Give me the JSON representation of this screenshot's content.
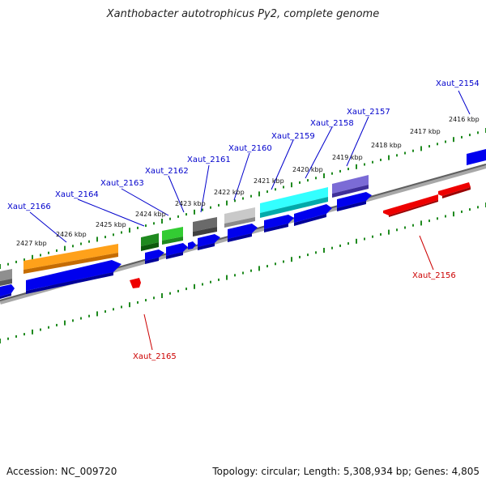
{
  "title": "Xanthobacter autotrophicus Py2, complete genome",
  "footer": {
    "accession": "Accession: NC_009720",
    "stats": "Topology: circular; Length: 5,308,934 bp; Genes: 4,805"
  },
  "colors": {
    "backbone": "#777777",
    "ticks": "#1f8a1f",
    "forward_gene": "#0000ee",
    "reverse_gene": "#ee0000",
    "label_forward": "#0000cc",
    "label_reverse": "#cc0000"
  },
  "kbp_labels": [
    "2416 kbp",
    "2417 kbp",
    "2418 kbp",
    "2419 kbp",
    "2420 kbp",
    "2421 kbp",
    "2422 kbp",
    "2423 kbp",
    "2424 kbp",
    "2425 kbp",
    "2426 kbp",
    "2427 kbp"
  ],
  "gene_labels": [
    {
      "text": "Xaut_2154",
      "strand": "forward"
    },
    {
      "text": "Xaut_2157",
      "strand": "forward"
    },
    {
      "text": "Xaut_2158",
      "strand": "forward"
    },
    {
      "text": "Xaut_2159",
      "strand": "forward"
    },
    {
      "text": "Xaut_2160",
      "strand": "forward"
    },
    {
      "text": "Xaut_2161",
      "strand": "forward"
    },
    {
      "text": "Xaut_2162",
      "strand": "forward"
    },
    {
      "text": "Xaut_2163",
      "strand": "forward"
    },
    {
      "text": "Xaut_2164",
      "strand": "forward"
    },
    {
      "text": "Xaut_2166",
      "strand": "forward"
    },
    {
      "text": "Xaut_2156",
      "strand": "reverse"
    },
    {
      "text": "Xaut_2165",
      "strand": "reverse"
    }
  ]
}
